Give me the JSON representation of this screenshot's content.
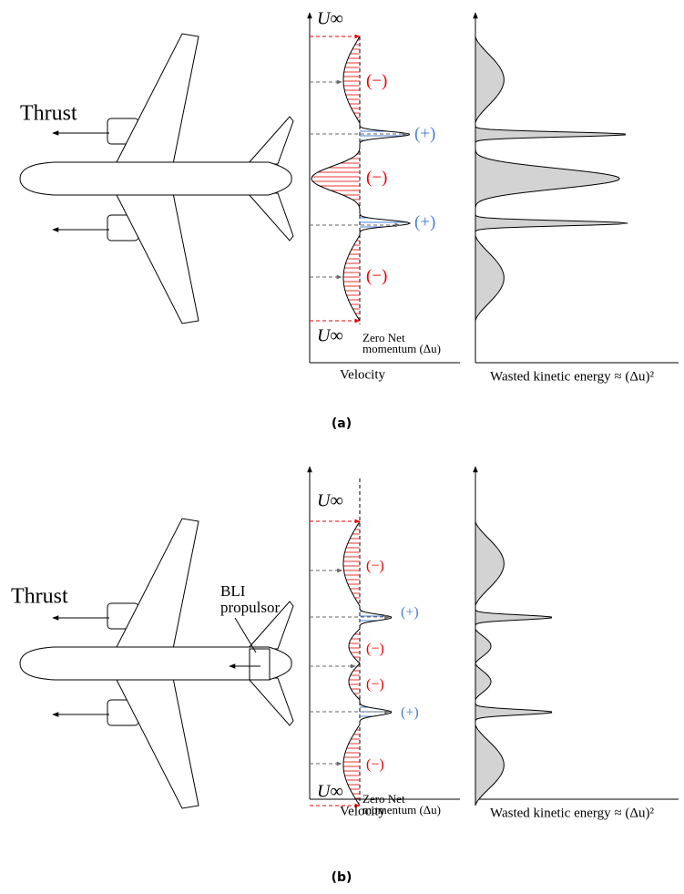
{
  "panels": [
    {
      "caption": "(a)",
      "thrust_label": "Thrust",
      "free_stream_top": "U∞",
      "free_stream_bottom": "U∞",
      "deficit_labels": [
        "(−)",
        "(−)",
        "(−)"
      ],
      "excess_labels": [
        "(+)",
        "(+)"
      ],
      "zero_net_label": [
        "Zero Net",
        "momentum (Δu)"
      ],
      "velocity_axis_label": "Velocity",
      "energy_axis_label": "Wasted kinetic energy ≈ (Δu)²"
    },
    {
      "caption": "(b)",
      "thrust_label": "Thrust",
      "bli_label": [
        "BLI",
        "propulsor"
      ],
      "free_stream_top": "U∞",
      "free_stream_bottom": "U∞",
      "deficit_labels": [
        "(−)",
        "(−)",
        "(−)",
        "(−)"
      ],
      "excess_labels": [
        "(+)",
        "(+)"
      ],
      "zero_net_label": [
        "Zero Net",
        "momentum (Δu)"
      ],
      "velocity_axis_label": "Velocity",
      "energy_axis_label": "Wasted kinetic energy ≈ (Δu)²"
    }
  ]
}
